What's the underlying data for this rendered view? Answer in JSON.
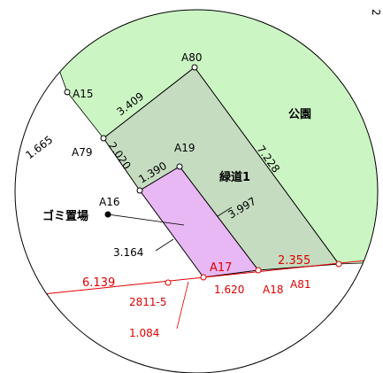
{
  "page_corner_number": "2",
  "areas": {
    "park_label": "公園",
    "green_road_label": "緑道1",
    "garbage_label": "ゴミ置場"
  },
  "points": {
    "A80": "A80",
    "A15": "A15",
    "A79": "A79",
    "A19": "A19",
    "A16": "A16",
    "A17": "A17",
    "A18": "A18",
    "A81": "A81"
  },
  "dimensions": {
    "d_3409": "3.409",
    "d_1665": "1.665",
    "d_2020": "2.020",
    "d_7228": "7.228",
    "d_1390": "1.390",
    "d_3997": "3.997",
    "d_3164": "3.164",
    "d_1620": "1.620",
    "d_2355": "2.355",
    "d_6139": "6.139",
    "d_1084": "1.084"
  },
  "parcels": {
    "p_2811_5": "2811-5"
  },
  "colors": {
    "park": "#ccf5c4",
    "green_road": "#c5dcc0",
    "garbage": "#e8b8f4",
    "boundary_red": "#e00000",
    "line_black": "#000000"
  }
}
